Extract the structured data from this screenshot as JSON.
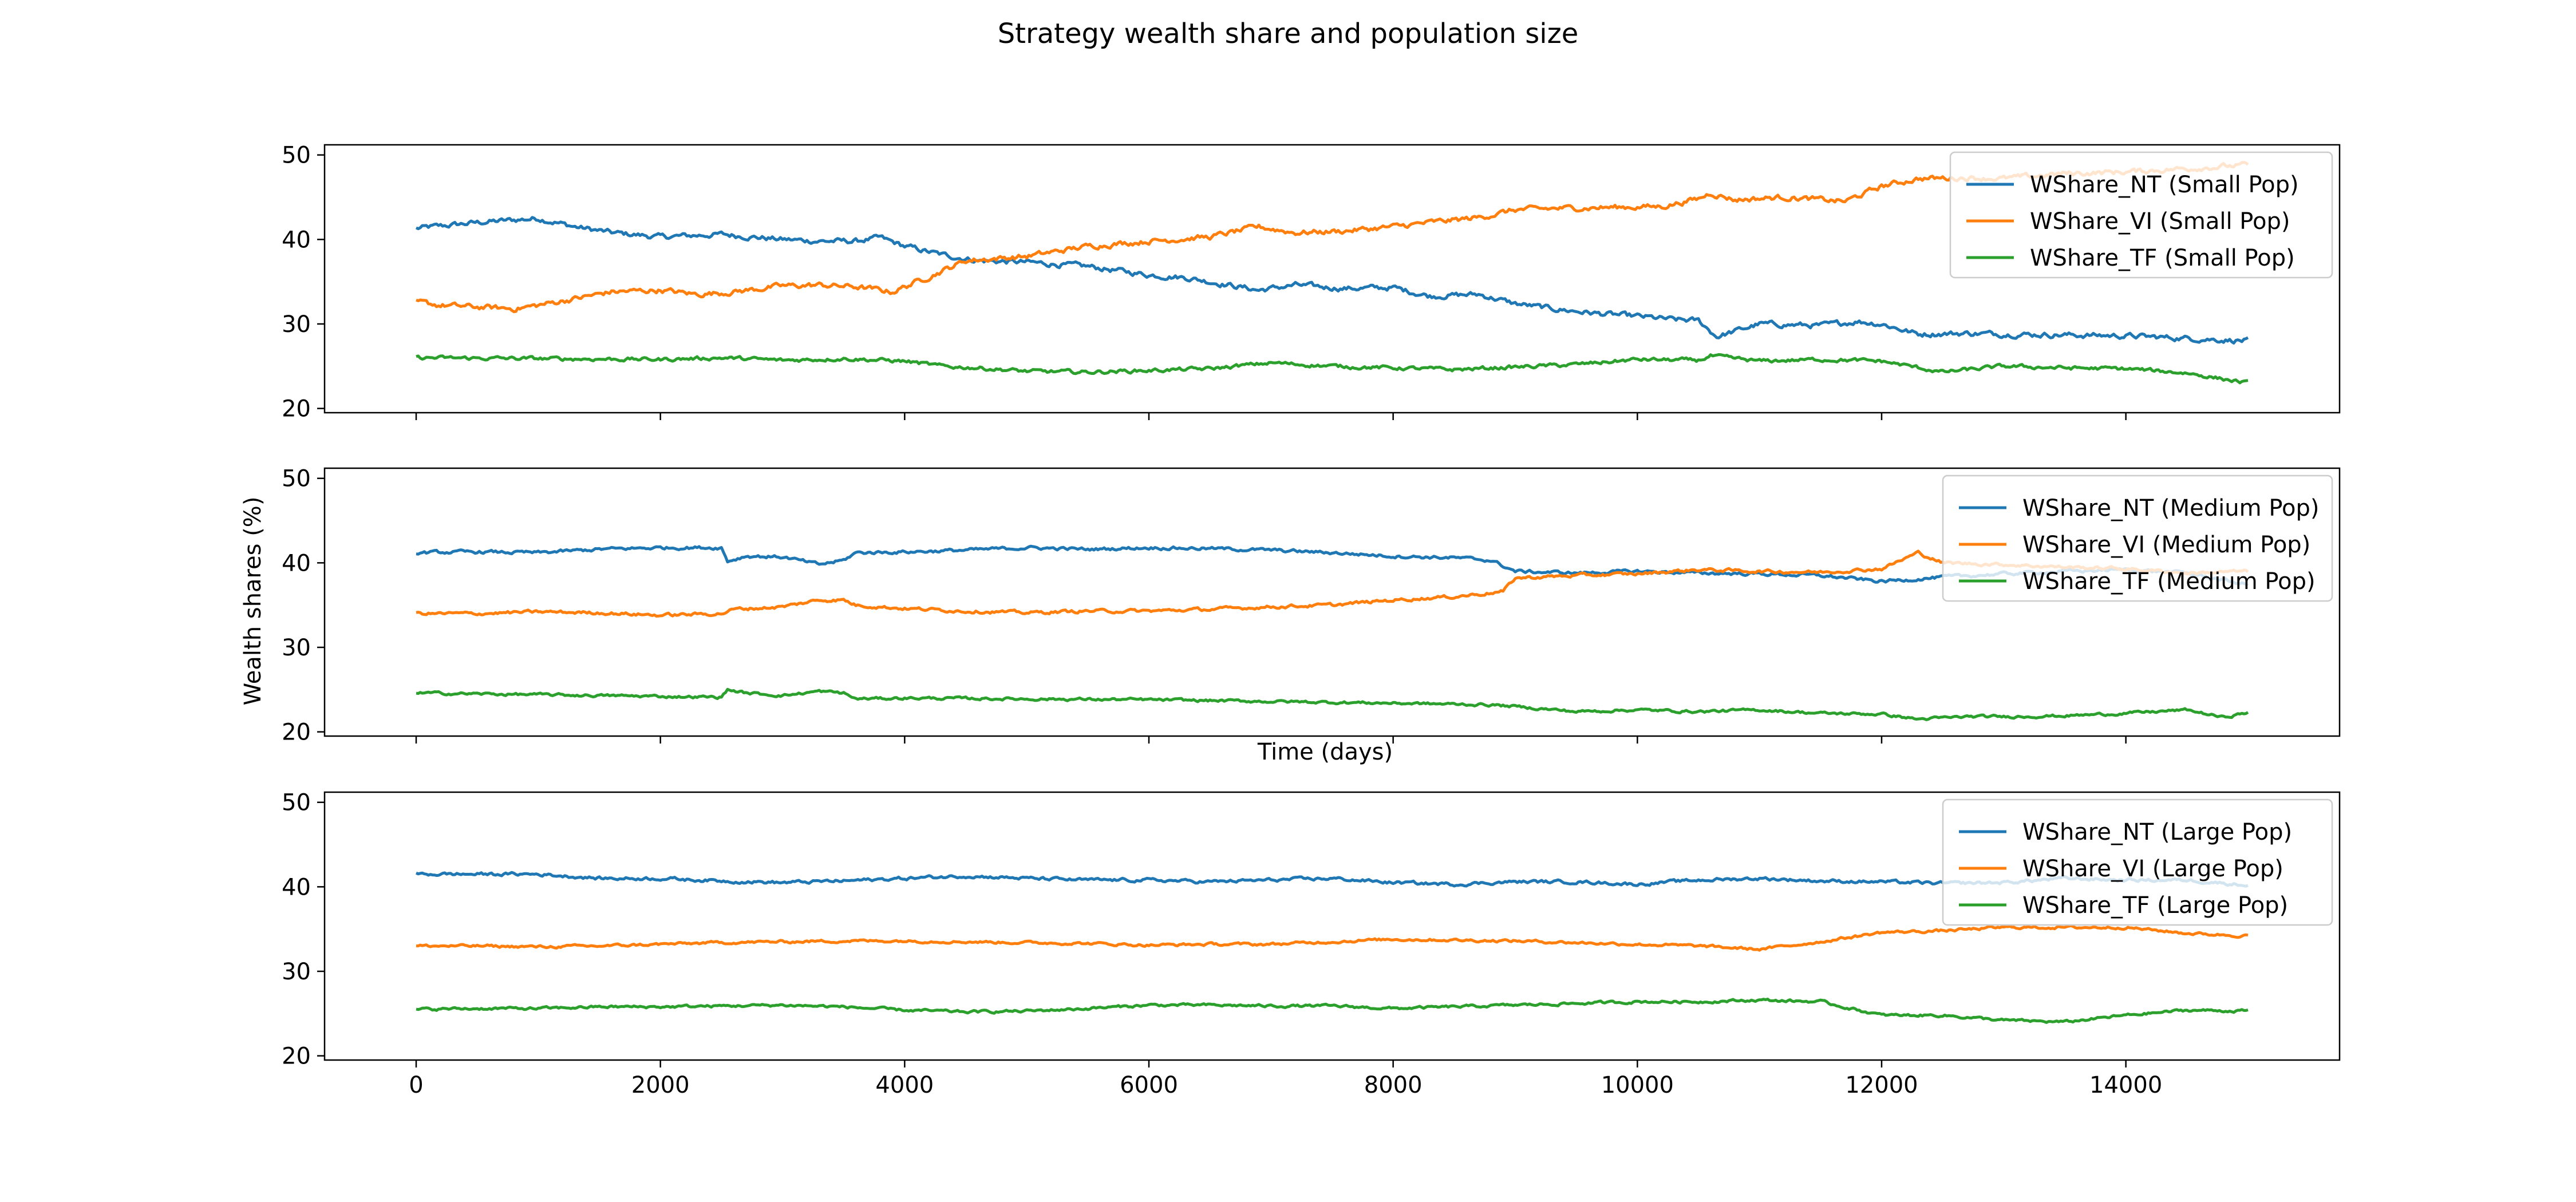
{
  "figure": {
    "suptitle": "Strategy wealth share and population size",
    "ylabel": "Wealth shares (%)",
    "xlabel": "Time (days)"
  },
  "colors": {
    "NT": "#1f77b4",
    "VI": "#ff7f0e",
    "TF": "#2ca02c"
  },
  "chart_data": [
    {
      "type": "line",
      "xlim": [
        -750,
        15750
      ],
      "ylim": [
        19.5,
        51.2
      ],
      "xticks": [
        0,
        2000,
        4000,
        6000,
        8000,
        10000,
        12000,
        14000
      ],
      "xtick_labels": [
        "",
        "",
        "",
        "",
        "",
        "",
        "",
        ""
      ],
      "yticks": [
        20,
        30,
        40,
        50
      ],
      "ytick_labels": [
        "20",
        "30",
        "40",
        "50"
      ],
      "legend_position": "upper right",
      "series": [
        {
          "name": "WShare_NT (Small Pop)",
          "color_key": "NT",
          "noise": 0.5,
          "x": [
            0,
            500,
            800,
            1000,
            1300,
            1600,
            2000,
            2500,
            3000,
            3300,
            3600,
            3800,
            4000,
            4300,
            4600,
            5000,
            5500,
            6000,
            6300,
            6700,
            6900,
            7200,
            7600,
            8000,
            8300,
            8700,
            9000,
            9300,
            9700,
            10000,
            10300,
            10500,
            10650,
            11000,
            11500,
            11800,
            12000,
            12300,
            12700,
            13000,
            13500,
            14000,
            14500,
            15000
          ],
          "y": [
            41.3,
            42.0,
            42.3,
            42.5,
            41.5,
            40.8,
            40.3,
            40.6,
            40.0,
            39.8,
            39.8,
            40.2,
            39.2,
            38.2,
            37.5,
            37.3,
            36.8,
            35.8,
            35.5,
            34.5,
            34.0,
            34.6,
            34.2,
            34.3,
            33.3,
            33.5,
            32.4,
            31.8,
            31.2,
            30.9,
            30.5,
            30.4,
            28.5,
            30.0,
            29.8,
            30.3,
            30.0,
            28.8,
            28.9,
            28.8,
            28.7,
            28.6,
            28.3,
            28.0
          ]
        },
        {
          "name": "WShare_VI (Small Pop)",
          "color_key": "VI",
          "noise": 0.5,
          "x": [
            0,
            200,
            500,
            800,
            1000,
            1300,
            1600,
            2000,
            2300,
            2600,
            3000,
            3300,
            3600,
            3900,
            4200,
            4500,
            5000,
            5500,
            6000,
            6500,
            6900,
            7200,
            7600,
            8000,
            8300,
            8700,
            9000,
            9400,
            9800,
            10200,
            10500,
            10600,
            10800,
            11200,
            11700,
            12000,
            12300,
            12700,
            13000,
            13500,
            14000,
            14500,
            15000
          ],
          "y": [
            32.6,
            32.2,
            32.0,
            31.8,
            32.2,
            33.0,
            33.8,
            34.0,
            33.5,
            33.8,
            34.5,
            34.6,
            34.4,
            33.8,
            35.6,
            37.5,
            38.0,
            39.2,
            39.8,
            40.3,
            41.5,
            40.8,
            41.0,
            41.5,
            42.0,
            42.6,
            43.5,
            43.7,
            43.8,
            43.9,
            44.8,
            45.5,
            44.7,
            45.0,
            44.5,
            46.3,
            47.2,
            47.3,
            47.2,
            47.8,
            48.0,
            48.4,
            48.8
          ]
        },
        {
          "name": "WShare_TF (Small Pop)",
          "color_key": "TF",
          "noise": 0.35,
          "x": [
            0,
            1000,
            2000,
            2500,
            3000,
            3500,
            4000,
            4300,
            4600,
            5000,
            5500,
            6000,
            6500,
            7000,
            7500,
            8000,
            8500,
            9000,
            9500,
            10000,
            10500,
            10600,
            11000,
            11500,
            12000,
            12500,
            13000,
            13500,
            14000,
            14500,
            15000
          ],
          "y": [
            26.0,
            25.9,
            25.8,
            26.0,
            25.7,
            25.9,
            25.6,
            25.0,
            24.8,
            24.4,
            24.3,
            24.5,
            24.7,
            25.4,
            25.0,
            24.8,
            24.6,
            24.9,
            25.2,
            25.8,
            25.7,
            26.2,
            25.6,
            25.8,
            25.6,
            24.3,
            25.0,
            24.8,
            24.7,
            24.2,
            23.0
          ]
        }
      ]
    },
    {
      "type": "line",
      "xlim": [
        -750,
        15750
      ],
      "ylim": [
        19.5,
        51.2
      ],
      "xticks": [
        0,
        2000,
        4000,
        6000,
        8000,
        10000,
        12000,
        14000
      ],
      "xtick_labels": [
        "",
        "",
        "",
        "",
        "",
        "",
        "",
        ""
      ],
      "yticks": [
        20,
        30,
        40,
        50
      ],
      "ytick_labels": [
        "20",
        "30",
        "40",
        "50"
      ],
      "legend_position": "upper right",
      "series": [
        {
          "name": "WShare_NT (Medium Pop)",
          "color_key": "NT",
          "noise": 0.3,
          "x": [
            0,
            500,
            1000,
            1500,
            2000,
            2500,
            2550,
            2700,
            3000,
            3300,
            3500,
            3600,
            4000,
            4500,
            5000,
            5500,
            6000,
            6500,
            7000,
            7500,
            8000,
            8500,
            8800,
            9000,
            9500,
            10000,
            10500,
            11000,
            11500,
            12000,
            12500,
            13000,
            13500,
            14000,
            14500,
            15000
          ],
          "y": [
            41.2,
            41.3,
            41.2,
            41.6,
            41.8,
            41.8,
            40.2,
            40.8,
            40.7,
            39.8,
            40.3,
            41.2,
            41.3,
            41.5,
            41.8,
            41.6,
            41.8,
            41.7,
            41.5,
            41.2,
            40.8,
            40.6,
            40.3,
            39.0,
            38.8,
            39.0,
            38.8,
            38.7,
            38.5,
            37.8,
            38.3,
            38.7,
            39.0,
            39.2,
            38.8,
            37.4
          ]
        },
        {
          "name": "WShare_VI (Medium Pop)",
          "color_key": "VI",
          "noise": 0.3,
          "x": [
            0,
            500,
            1000,
            1500,
            2000,
            2500,
            2600,
            3000,
            3300,
            3500,
            3600,
            4000,
            4500,
            5000,
            5500,
            6000,
            6500,
            7000,
            7500,
            8000,
            8500,
            8900,
            9000,
            9500,
            10000,
            10500,
            11000,
            11500,
            12000,
            12300,
            12500,
            13000,
            13500,
            14000,
            14500,
            15000
          ],
          "y": [
            34.0,
            34.0,
            34.2,
            34.1,
            33.8,
            34.0,
            34.5,
            34.8,
            35.6,
            35.6,
            35.0,
            34.6,
            34.3,
            34.1,
            34.3,
            34.3,
            34.5,
            34.8,
            35.0,
            35.6,
            36.0,
            36.6,
            38.2,
            38.5,
            38.7,
            39.2,
            39.0,
            38.9,
            39.3,
            41.2,
            40.0,
            39.8,
            39.5,
            39.3,
            38.8,
            39.0
          ]
        },
        {
          "name": "WShare_TF (Medium Pop)",
          "color_key": "TF",
          "noise": 0.25,
          "x": [
            0,
            500,
            1000,
            1500,
            2000,
            2500,
            2550,
            2700,
            3000,
            3300,
            3500,
            3600,
            4000,
            5000,
            6000,
            7000,
            8000,
            8800,
            9000,
            9500,
            10000,
            10500,
            11000,
            11500,
            12000,
            12300,
            12700,
            13000,
            13500,
            14000,
            14500,
            14800,
            15000
          ],
          "y": [
            24.6,
            24.5,
            24.4,
            24.3,
            24.2,
            24.1,
            25.0,
            24.6,
            24.3,
            24.8,
            24.6,
            23.9,
            24.0,
            23.9,
            23.8,
            23.6,
            23.4,
            23.2,
            23.0,
            22.4,
            22.6,
            22.4,
            22.6,
            22.2,
            22.1,
            21.5,
            21.8,
            21.8,
            21.9,
            22.2,
            22.6,
            21.7,
            22.3
          ]
        }
      ]
    },
    {
      "type": "line",
      "xlim": [
        -750,
        15750
      ],
      "ylim": [
        19.5,
        51.2
      ],
      "xticks": [
        0,
        2000,
        4000,
        6000,
        8000,
        10000,
        12000,
        14000
      ],
      "xtick_labels": [
        "0",
        "2000",
        "4000",
        "6000",
        "8000",
        "10000",
        "12000",
        "14000"
      ],
      "yticks": [
        20,
        30,
        40,
        50
      ],
      "ytick_labels": [
        "20",
        "30",
        "40",
        "50"
      ],
      "legend_position": "upper right",
      "series": [
        {
          "name": "WShare_NT (Large Pop)",
          "color_key": "NT",
          "noise": 0.3,
          "x": [
            0,
            500,
            1000,
            1500,
            2000,
            2500,
            3000,
            3500,
            4000,
            4500,
            5000,
            5500,
            6000,
            6500,
            7000,
            7500,
            8000,
            8500,
            9000,
            9500,
            10000,
            10500,
            11000,
            11500,
            12000,
            12500,
            13000,
            13500,
            14000,
            14500,
            15000
          ],
          "y": [
            41.5,
            41.5,
            41.5,
            41.0,
            41.0,
            40.7,
            40.5,
            40.7,
            41.0,
            41.3,
            41.0,
            40.8,
            40.8,
            40.6,
            40.8,
            41.0,
            40.5,
            40.3,
            40.6,
            40.6,
            40.3,
            40.8,
            41.0,
            40.7,
            40.6,
            40.4,
            40.5,
            41.0,
            40.8,
            40.8,
            40.2
          ]
        },
        {
          "name": "WShare_VI (Large Pop)",
          "color_key": "VI",
          "noise": 0.25,
          "x": [
            0,
            500,
            1000,
            1500,
            2000,
            2500,
            3000,
            3500,
            4000,
            4500,
            5000,
            5500,
            6000,
            6500,
            7000,
            7500,
            8000,
            8500,
            9000,
            9500,
            10000,
            10500,
            11000,
            11500,
            12000,
            12500,
            13000,
            13500,
            14000,
            14500,
            15000
          ],
          "y": [
            33.0,
            33.0,
            32.9,
            33.0,
            33.2,
            33.4,
            33.5,
            33.6,
            33.6,
            33.5,
            33.4,
            33.3,
            33.1,
            33.2,
            33.2,
            33.5,
            33.8,
            33.7,
            33.6,
            33.4,
            33.2,
            33.0,
            32.6,
            33.5,
            34.6,
            34.8,
            35.2,
            35.2,
            35.2,
            34.5,
            34.2
          ]
        },
        {
          "name": "WShare_TF (Large Pop)",
          "color_key": "TF",
          "noise": 0.25,
          "x": [
            0,
            500,
            1000,
            1500,
            2000,
            2500,
            3000,
            3500,
            4000,
            4500,
            5000,
            5500,
            6000,
            6500,
            7000,
            7500,
            8000,
            8500,
            9000,
            9500,
            10000,
            10500,
            11000,
            11500,
            12000,
            12500,
            13000,
            13500,
            14000,
            14500,
            15000
          ],
          "y": [
            25.5,
            25.6,
            25.6,
            25.8,
            25.8,
            25.9,
            26.0,
            25.8,
            25.4,
            25.2,
            25.3,
            25.6,
            26.0,
            26.0,
            25.9,
            25.9,
            25.6,
            25.8,
            26.0,
            26.2,
            26.4,
            26.4,
            26.6,
            26.4,
            24.8,
            24.8,
            24.2,
            24.0,
            24.8,
            25.4,
            25.3
          ]
        }
      ]
    }
  ]
}
